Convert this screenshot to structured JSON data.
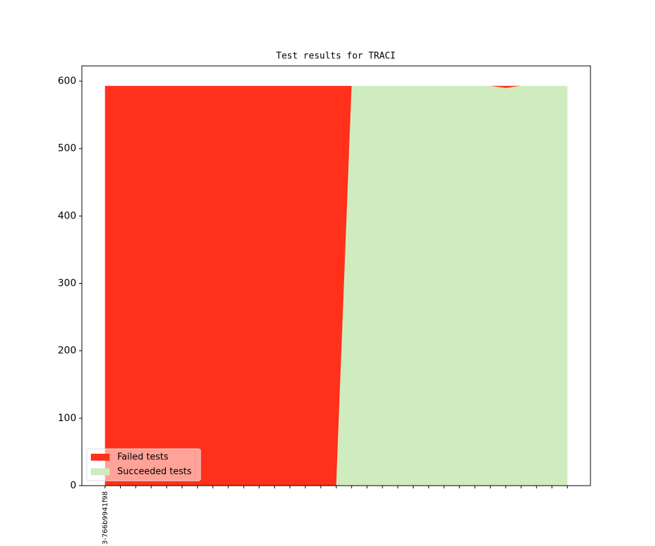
{
  "chart_data": {
    "type": "stacked-area",
    "title": "Test results for TRACI",
    "categories": [
      "3-766b9941f98",
      null,
      null,
      null,
      null,
      null,
      null,
      null,
      null,
      null,
      null,
      null,
      null,
      null,
      null,
      null,
      null,
      null,
      null,
      null,
      null,
      null,
      null,
      null,
      null,
      null,
      null,
      null,
      null,
      null,
      null
    ],
    "series": [
      {
        "name": "Failed tests",
        "color": "#ff311a",
        "values": [
          593,
          593,
          593,
          593,
          593,
          593,
          593,
          593,
          593,
          593,
          593,
          593,
          593,
          593,
          593,
          593,
          0,
          0,
          0,
          0,
          0,
          0,
          0,
          0,
          0,
          0,
          3,
          0,
          0,
          0,
          0
        ]
      },
      {
        "name": "Succeeded tests",
        "color": "#cfecbf",
        "values": [
          0,
          0,
          0,
          0,
          0,
          0,
          0,
          0,
          0,
          0,
          0,
          0,
          0,
          0,
          0,
          0,
          593,
          593,
          593,
          593,
          593,
          593,
          593,
          593,
          593,
          593,
          590,
          593,
          593,
          593,
          593
        ]
      }
    ],
    "ylim": [
      0,
      622.65
    ],
    "yticks": [
      0,
      100,
      200,
      300,
      400,
      500,
      600
    ],
    "legend": "lower left"
  }
}
